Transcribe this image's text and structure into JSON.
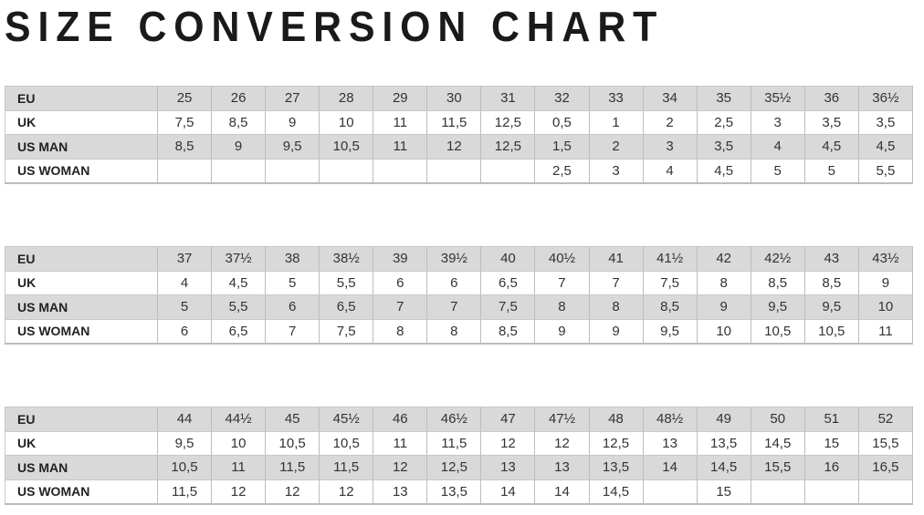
{
  "title": "SIZE CONVERSION CHART",
  "row_labels": [
    "EU",
    "UK",
    "US MAN",
    "US WOMAN"
  ],
  "tables": [
    {
      "rows": [
        [
          "25",
          "26",
          "27",
          "28",
          "29",
          "30",
          "31",
          "32",
          "33",
          "34",
          "35",
          "35½",
          "36",
          "36½"
        ],
        [
          "7,5",
          "8,5",
          "9",
          "10",
          "11",
          "11,5",
          "12,5",
          "0,5",
          "1",
          "2",
          "2,5",
          "3",
          "3,5",
          "3,5"
        ],
        [
          "8,5",
          "9",
          "9,5",
          "10,5",
          "11",
          "12",
          "12,5",
          "1,5",
          "2",
          "3",
          "3,5",
          "4",
          "4,5",
          "4,5"
        ],
        [
          "",
          "",
          "",
          "",
          "",
          "",
          "",
          "2,5",
          "3",
          "4",
          "4,5",
          "5",
          "5",
          "5,5"
        ]
      ]
    },
    {
      "rows": [
        [
          "37",
          "37½",
          "38",
          "38½",
          "39",
          "39½",
          "40",
          "40½",
          "41",
          "41½",
          "42",
          "42½",
          "43",
          "43½"
        ],
        [
          "4",
          "4,5",
          "5",
          "5,5",
          "6",
          "6",
          "6,5",
          "7",
          "7",
          "7,5",
          "8",
          "8,5",
          "8,5",
          "9"
        ],
        [
          "5",
          "5,5",
          "6",
          "6,5",
          "7",
          "7",
          "7,5",
          "8",
          "8",
          "8,5",
          "9",
          "9,5",
          "9,5",
          "10"
        ],
        [
          "6",
          "6,5",
          "7",
          "7,5",
          "8",
          "8",
          "8,5",
          "9",
          "9",
          "9,5",
          "10",
          "10,5",
          "10,5",
          "11"
        ]
      ]
    },
    {
      "rows": [
        [
          "44",
          "44½",
          "45",
          "45½",
          "46",
          "46½",
          "47",
          "47½",
          "48",
          "48½",
          "49",
          "50",
          "51",
          "52"
        ],
        [
          "9,5",
          "10",
          "10,5",
          "10,5",
          "11",
          "11,5",
          "12",
          "12",
          "12,5",
          "13",
          "13,5",
          "14,5",
          "15",
          "15,5"
        ],
        [
          "10,5",
          "11",
          "11,5",
          "11,5",
          "12",
          "12,5",
          "13",
          "13",
          "13,5",
          "14",
          "14,5",
          "15,5",
          "16",
          "16,5"
        ],
        [
          "11,5",
          "12",
          "12",
          "12",
          "13",
          "13,5",
          "14",
          "14",
          "14,5",
          "",
          "15",
          "",
          "",
          ""
        ]
      ]
    }
  ],
  "colors": {
    "shaded_row": "#d9d9d9",
    "text": "#333333"
  }
}
